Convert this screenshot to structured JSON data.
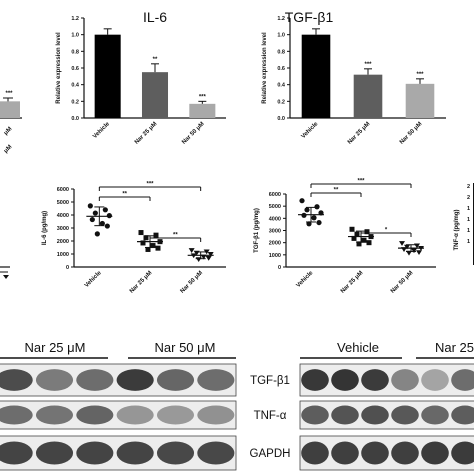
{
  "chart_data": [
    {
      "panel": "partial-left-bar",
      "type": "bar",
      "categories": [
        "",
        "",
        ""
      ],
      "series": [
        {
          "values": [
            null,
            null,
            0.2
          ],
          "errors": [
            null,
            null,
            0.04
          ]
        }
      ],
      "significance": [
        "",
        "",
        "***"
      ],
      "tick_labels_partial": [
        "μM",
        "μM"
      ]
    },
    {
      "panel": "il6-bar",
      "type": "bar",
      "title": "IL-6",
      "ylabel": "Relative expression level",
      "categories": [
        "Vehicle",
        "Nar 25 μM",
        "Nar 50 μM"
      ],
      "series": [
        {
          "values": [
            1.0,
            0.55,
            0.17
          ],
          "errors": [
            0.07,
            0.1,
            0.03
          ],
          "colors": [
            "#000000",
            "#5e5e5e",
            "#a9a9a9"
          ]
        }
      ],
      "significance": [
        "",
        "**",
        "***"
      ],
      "yticks": [
        "0.0",
        "0.2",
        "0.4",
        "0.6",
        "0.8",
        "1.0",
        "1.2"
      ],
      "ylim": [
        0,
        1.2
      ]
    },
    {
      "panel": "tgfb1-bar",
      "type": "bar",
      "title": "TGF-β1",
      "ylabel": "Relative expression level",
      "categories": [
        "Vehicle",
        "Nar 25 μM",
        "Nar 50 μM"
      ],
      "series": [
        {
          "values": [
            1.0,
            0.52,
            0.41
          ],
          "errors": [
            0.07,
            0.07,
            0.06
          ],
          "colors": [
            "#000000",
            "#5e5e5e",
            "#a9a9a9"
          ]
        }
      ],
      "significance": [
        "",
        "***",
        "***"
      ],
      "yticks": [
        "0.0",
        "0.2",
        "0.4",
        "0.6",
        "0.8",
        "1.0",
        "1.2"
      ],
      "ylim": [
        0,
        1.2
      ]
    },
    {
      "panel": "il6-scatter",
      "type": "scatter",
      "ylabel": "IL-6 (pg/mg)",
      "categories": [
        "Vehicle",
        "Nar 25 μM",
        "Nar 50 μM"
      ],
      "yticks": [
        "0",
        "1000",
        "2000",
        "3000",
        "4000",
        "5000",
        "6000"
      ],
      "ylim": [
        0,
        6000
      ],
      "groups": [
        {
          "marker": "circle",
          "points": [
            4700,
            4400,
            4150,
            3950,
            3650,
            3350,
            3150,
            2550
          ],
          "mean": 3900,
          "sd": 720
        },
        {
          "marker": "square",
          "points": [
            2650,
            2450,
            2250,
            1950,
            1850,
            1650,
            1450,
            1350
          ],
          "mean": 1950,
          "sd": 450
        },
        {
          "marker": "triangle-down",
          "points": [
            1280,
            1180,
            1080,
            980,
            880,
            780,
            680,
            580
          ],
          "mean": 900,
          "sd": 260
        }
      ],
      "comparisons": [
        {
          "from": 0,
          "to": 1,
          "label": "**"
        },
        {
          "from": 0,
          "to": 2,
          "label": "***"
        },
        {
          "from": 1,
          "to": 2,
          "label": "**"
        }
      ]
    },
    {
      "panel": "tgfb1-scatter",
      "type": "scatter",
      "ylabel": "TGF-β1 (pg/mg)",
      "categories": [
        "Vehicle",
        "Nar 25 μM",
        "Nar 50 μM"
      ],
      "yticks": [
        "0",
        "1000",
        "2000",
        "3000",
        "4000",
        "5000",
        "6000"
      ],
      "ylim": [
        0,
        6000
      ],
      "groups": [
        {
          "marker": "circle",
          "points": [
            5450,
            4950,
            4700,
            4450,
            4250,
            4050,
            3650,
            3550
          ],
          "mean": 4300,
          "sd": 600
        },
        {
          "marker": "square",
          "points": [
            3100,
            2900,
            2700,
            2500,
            2350,
            2200,
            2000,
            1900
          ],
          "mean": 2500,
          "sd": 450
        },
        {
          "marker": "triangle-down",
          "points": [
            1950,
            1750,
            1650,
            1550,
            1450,
            1350,
            1200,
            1150
          ],
          "mean": 1550,
          "sd": 280
        }
      ],
      "comparisons": [
        {
          "from": 0,
          "to": 1,
          "label": "**"
        },
        {
          "from": 0,
          "to": 2,
          "label": "***"
        },
        {
          "from": 1,
          "to": 2,
          "label": "*"
        }
      ]
    },
    {
      "panel": "partial-right-scatter",
      "type": "scatter",
      "ylabel": "TNF-α (pg/mg)",
      "yticks": [
        "2",
        "2",
        "1",
        "1",
        "1",
        "1"
      ]
    }
  ],
  "blot": {
    "left_headers": [
      "Nar 25 μM",
      "Nar 50 μM"
    ],
    "right_headers": [
      "Vehicle",
      "Nar 25"
    ],
    "row_labels": [
      "TGF-β1",
      "TNF-α",
      "GAPDH"
    ],
    "left_rows": [
      [
        0.78,
        0.55,
        0.62,
        0.86,
        0.65,
        0.62
      ],
      [
        0.62,
        0.58,
        0.66,
        0.42,
        0.4,
        0.44
      ],
      [
        0.82,
        0.82,
        0.82,
        0.82,
        0.8,
        0.8
      ]
    ],
    "right_rows": [
      [
        0.88,
        0.9,
        0.86,
        0.5,
        0.35,
        0.62
      ],
      [
        0.7,
        0.74,
        0.76,
        0.72,
        0.64,
        0.7
      ],
      [
        0.84,
        0.84,
        0.84,
        0.84,
        0.86,
        0.86
      ]
    ]
  }
}
